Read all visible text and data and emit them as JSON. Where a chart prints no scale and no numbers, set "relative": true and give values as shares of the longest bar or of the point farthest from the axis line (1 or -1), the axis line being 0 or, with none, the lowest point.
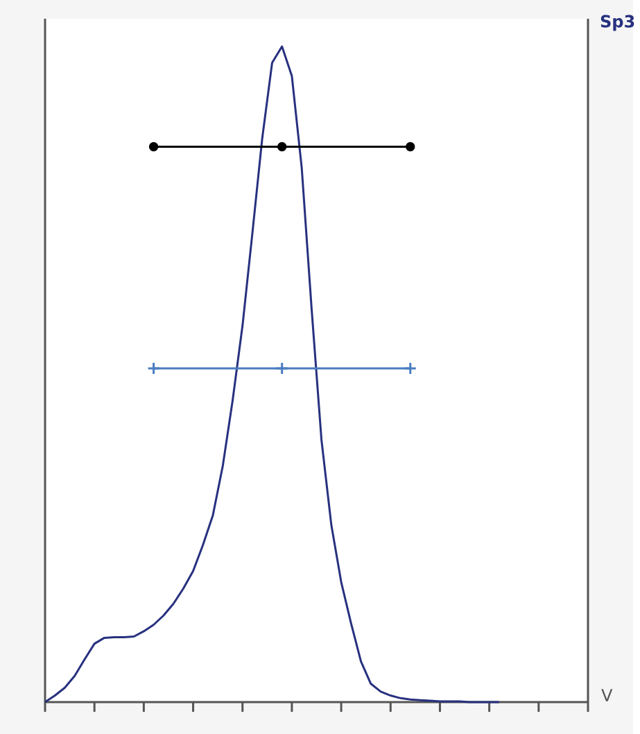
{
  "chart_data": {
    "type": "line",
    "relative": true,
    "xlabel": "V",
    "categories": [
      null,
      null,
      null,
      null,
      null,
      null,
      null,
      null,
      null,
      null,
      null,
      null,
      null,
      null,
      null,
      null,
      null,
      null,
      null,
      null,
      null,
      null,
      null,
      null,
      null,
      null,
      null,
      null,
      null,
      null,
      null,
      null,
      null,
      null,
      null,
      null,
      null,
      null,
      null,
      null,
      null,
      null,
      null,
      null,
      null,
      null,
      null,
      null,
      null,
      null,
      null,
      null,
      null,
      null,
      null,
      null
    ],
    "series": [
      {
        "name": "Sp3",
        "color": "#27317f",
        "marker": "none",
        "values": [
          0,
          0.01,
          0.022,
          0.04,
          0.065,
          0.089,
          0.098,
          0.099,
          0.099,
          0.1,
          0.108,
          0.118,
          0.132,
          0.15,
          0.173,
          0.2,
          0.24,
          0.285,
          0.36,
          0.46,
          0.574,
          0.715,
          0.86,
          0.975,
          1,
          0.955,
          0.815,
          0.6,
          0.4,
          0.27,
          0.183,
          0.12,
          0.062,
          0.028,
          0.016,
          0.01,
          0.006,
          0.004,
          0.003,
          0.002,
          0.001,
          0.001,
          0.001,
          0,
          0,
          0,
          0,
          null,
          null,
          null,
          null,
          null,
          null,
          null,
          null,
          null
        ]
      },
      {
        "color": "#000000",
        "marker": "circle",
        "values": [
          null,
          null,
          null,
          null,
          null,
          null,
          null,
          null,
          null,
          null,
          null,
          0.847,
          null,
          null,
          null,
          null,
          null,
          null,
          null,
          null,
          null,
          null,
          null,
          null,
          0.847,
          null,
          null,
          null,
          null,
          null,
          null,
          null,
          null,
          null,
          null,
          null,
          null,
          0.847,
          null,
          null,
          null,
          null,
          null,
          null,
          null,
          null,
          null,
          null,
          null,
          null,
          null,
          null,
          null,
          null,
          null,
          null
        ]
      },
      {
        "color": "#4a7cc0",
        "marker": "cross",
        "values": [
          null,
          null,
          null,
          null,
          null,
          null,
          null,
          null,
          null,
          null,
          null,
          0.509,
          null,
          null,
          null,
          null,
          null,
          null,
          null,
          null,
          null,
          null,
          null,
          null,
          0.509,
          null,
          null,
          null,
          null,
          null,
          null,
          null,
          null,
          null,
          null,
          null,
          null,
          0.509,
          null,
          null,
          null,
          null,
          null,
          null,
          null,
          null,
          null,
          null,
          null,
          null,
          null,
          null,
          null,
          null,
          null,
          null
        ]
      }
    ]
  }
}
